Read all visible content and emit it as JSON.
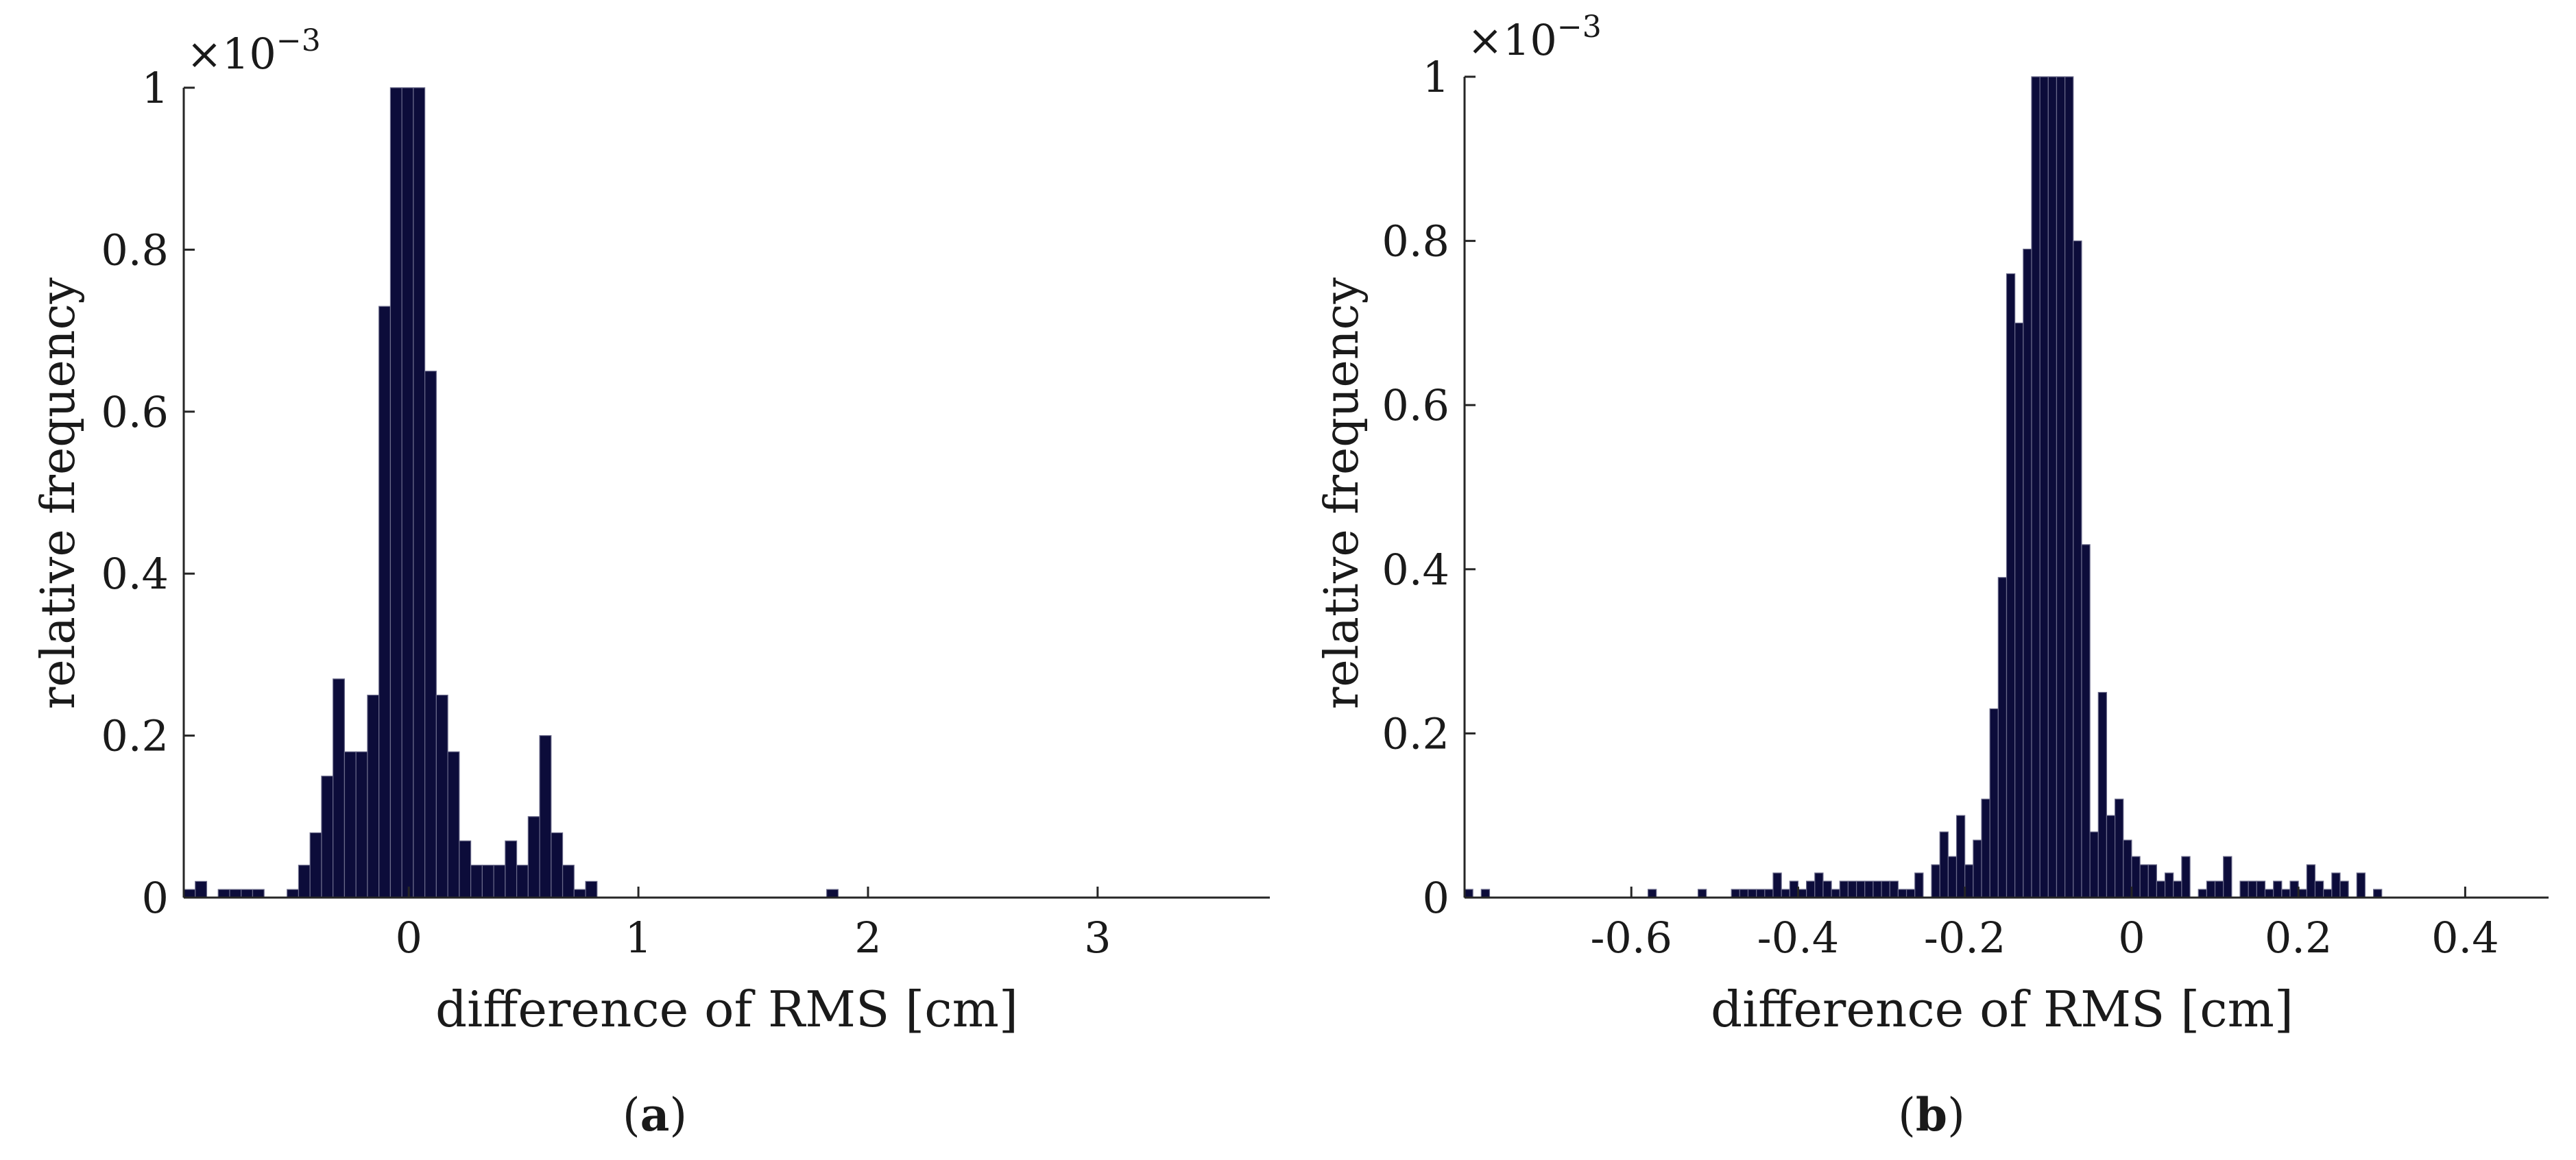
{
  "chart_data": [
    {
      "type": "bar",
      "panel_label": "a",
      "xlabel": "difference of RMS [cm]",
      "ylabel": "relative frequency",
      "y_exponent": "×10",
      "y_exponent_power": "−3",
      "xlim": [
        -0.98,
        3.75
      ],
      "ylim": [
        0,
        1
      ],
      "xticks": [
        0,
        1,
        2,
        3
      ],
      "xtick_labels": [
        "0",
        "1",
        "2",
        "3"
      ],
      "yticks": [
        0,
        0.2,
        0.4,
        0.6,
        0.8,
        1
      ],
      "ytick_labels": [
        "0",
        "0.2",
        "0.4",
        "0.6",
        "0.8",
        "1"
      ],
      "bar_color": "#0c0c3a",
      "bin_start": -0.98,
      "bin_width": 0.05,
      "values": [
        0.01,
        0.02,
        0,
        0.01,
        0.01,
        0.01,
        0.01,
        0,
        0,
        0.01,
        0.04,
        0.08,
        0.15,
        0.27,
        0.18,
        0.18,
        0.25,
        0.73,
        1,
        1,
        1,
        0.65,
        0.25,
        0.18,
        0.07,
        0.04,
        0.04,
        0.04,
        0.07,
        0.04,
        0.1,
        0.2,
        0.08,
        0.04,
        0.01,
        0.02,
        0,
        0,
        0,
        0,
        0,
        0,
        0,
        0,
        0,
        0,
        0,
        0,
        0,
        0,
        0,
        0,
        0,
        0,
        0,
        0,
        0.01,
        0,
        0,
        0,
        0,
        0,
        0,
        0,
        0,
        0,
        0,
        0,
        0,
        0,
        0,
        0,
        0,
        0,
        0,
        0,
        0,
        0,
        0,
        0,
        0,
        0,
        0,
        0,
        0,
        0,
        0,
        0,
        0,
        0,
        0,
        0,
        0,
        0,
        0,
        0,
        0,
        0,
        0,
        0,
        0,
        0,
        0,
        0,
        0,
        0,
        0,
        0,
        0,
        0,
        0,
        0,
        0,
        0,
        0,
        0,
        0,
        0,
        0,
        0,
        0,
        0,
        0,
        0,
        0,
        0,
        0,
        0,
        0,
        0,
        0,
        0,
        0,
        0,
        0,
        0,
        0,
        0,
        0,
        0,
        0,
        0,
        0,
        0.01,
        0,
        0,
        0,
        0,
        0,
        0,
        0,
        0,
        0,
        0,
        0,
        0,
        0,
        0,
        0,
        0,
        0,
        0,
        0,
        0,
        0,
        0,
        0,
        0,
        0,
        0,
        0,
        0,
        0,
        0,
        0,
        0,
        0,
        0,
        0,
        0,
        0,
        0,
        0,
        0,
        0,
        0,
        0,
        0,
        0,
        0,
        0,
        0,
        0,
        0,
        0,
        0,
        0,
        0,
        0,
        0,
        0,
        0,
        0,
        0,
        0,
        0,
        0,
        0,
        0,
        0,
        0,
        0,
        0,
        0,
        0,
        0,
        0,
        0,
        0,
        0,
        0,
        0,
        0,
        0,
        0,
        0,
        0,
        0,
        0,
        0,
        0,
        0,
        0,
        0,
        0,
        0,
        0,
        0,
        0,
        0,
        0,
        0,
        0,
        0.01
      ]
    },
    {
      "type": "bar",
      "panel_label": "b",
      "xlabel": "difference of RMS [cm]",
      "ylabel": "relative frequency",
      "y_exponent": "×10",
      "y_exponent_power": "−3",
      "xlim": [
        -0.8,
        0.5
      ],
      "ylim": [
        0,
        1
      ],
      "xticks": [
        -0.6,
        -0.4,
        -0.2,
        0,
        0.2,
        0.4
      ],
      "xtick_labels": [
        "-0.6",
        "-0.4",
        "-0.2",
        "0",
        "0.2",
        "0.4"
      ],
      "yticks": [
        0,
        0.2,
        0.4,
        0.6,
        0.8,
        1
      ],
      "ytick_labels": [
        "0",
        "0.2",
        "0.4",
        "0.6",
        "0.8",
        "1"
      ],
      "bar_color": "#0c0c3a",
      "bin_start": -0.8,
      "bin_width": 0.01,
      "values": [
        0.01,
        0,
        0.01,
        0,
        0,
        0,
        0,
        0,
        0,
        0,
        0,
        0,
        0,
        0,
        0,
        0,
        0,
        0,
        0,
        0,
        0,
        0,
        0.01,
        0,
        0,
        0,
        0,
        0,
        0.01,
        0,
        0,
        0,
        0.01,
        0.01,
        0.01,
        0.01,
        0.01,
        0.03,
        0.01,
        0.02,
        0.01,
        0.02,
        0.03,
        0.02,
        0.01,
        0.02,
        0.02,
        0.02,
        0.02,
        0.02,
        0.02,
        0.02,
        0.01,
        0.01,
        0.03,
        0,
        0.04,
        0.08,
        0.05,
        0.1,
        0.04,
        0.07,
        0.12,
        0.23,
        0.39,
        0.76,
        0.7,
        0.79,
        1,
        1,
        1,
        1,
        1,
        0.8,
        0.43,
        0.08,
        0.25,
        0.1,
        0.12,
        0.07,
        0.05,
        0.04,
        0.04,
        0.02,
        0.03,
        0.02,
        0.05,
        0,
        0.01,
        0.02,
        0.02,
        0.05,
        0,
        0.02,
        0.02,
        0.02,
        0.01,
        0.02,
        0.01,
        0.02,
        0.01,
        0.04,
        0.02,
        0.01,
        0.03,
        0.02,
        0,
        0.03,
        0,
        0.01
      ]
    }
  ]
}
